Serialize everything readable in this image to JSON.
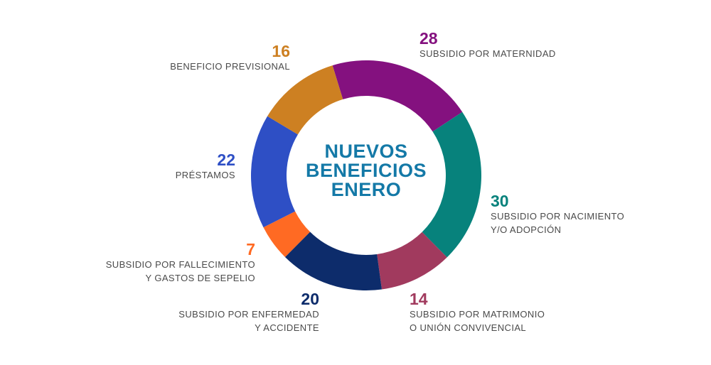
{
  "chart_data": {
    "type": "pie",
    "title_lines": [
      "NUEVOS",
      "BENEFICIOS",
      "ENERO"
    ],
    "slices": [
      {
        "value": 28,
        "label_lines": [
          "SUBSIDIO POR MATERNIDAD"
        ],
        "color": "#84117f"
      },
      {
        "value": 30,
        "label_lines": [
          "SUBSIDIO POR NACIMIENTO",
          "Y/O ADOPCIÓN"
        ],
        "color": "#07827c"
      },
      {
        "value": 14,
        "label_lines": [
          "SUBSIDIO POR MATRIMONIO",
          "O UNIÓN CONVIVENCIAL"
        ],
        "color": "#a13a5e"
      },
      {
        "value": 20,
        "label_lines": [
          "SUBSIDIO POR ENFERMEDAD",
          "Y ACCIDENTE"
        ],
        "color": "#0d2c6b"
      },
      {
        "value": 7,
        "label_lines": [
          "SUBSIDIO POR FALLECIMIENTO",
          "Y GASTOS DE SEPELIO"
        ],
        "color": "#ff6a23"
      },
      {
        "value": 22,
        "label_lines": [
          "PRÉSTAMOS"
        ],
        "color": "#2e4fc5"
      },
      {
        "value": 16,
        "label_lines": [
          "BENEFICIO PREVISIONAL"
        ],
        "color": "#cd8022"
      }
    ],
    "title_color": "#1479a7"
  }
}
